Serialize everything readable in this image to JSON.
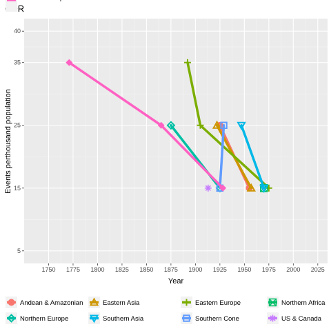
{
  "chart_data": {
    "type": "line",
    "title": "CDR",
    "xlabel": "Year",
    "ylabel": "Events perthousand population",
    "xlim": [
      1725,
      2035
    ],
    "ylim": [
      3,
      42
    ],
    "x_ticks": [
      1750,
      1775,
      1800,
      1825,
      1850,
      1875,
      1900,
      1925,
      1950,
      1975,
      2000,
      2025
    ],
    "y_ticks": [
      5,
      15,
      25,
      35,
      40
    ],
    "grid": true,
    "legend_position": "bottom",
    "series": [
      {
        "name": "Andean & Amazonian",
        "color": "#F8766D",
        "marker": "circle",
        "points": [
          {
            "x": 1925,
            "y": 25
          },
          {
            "x": 1955,
            "y": 15
          }
        ]
      },
      {
        "name": "Eastern Asia",
        "color": "#CD9600",
        "marker": "triangle-up",
        "points": [
          {
            "x": 1922,
            "y": 25
          },
          {
            "x": 1957,
            "y": 15
          }
        ]
      },
      {
        "name": "Eastern Europe",
        "color": "#7CAE00",
        "marker": "plus",
        "points": [
          {
            "x": 1892,
            "y": 35
          },
          {
            "x": 1905,
            "y": 25
          },
          {
            "x": 1975,
            "y": 15
          }
        ]
      },
      {
        "name": "Northern Africa",
        "color": "#00BE67",
        "marker": "x-box",
        "points": [
          {
            "x": 1970,
            "y": 15
          }
        ]
      },
      {
        "name": "Northern Europe",
        "color": "#00BFA4",
        "marker": "diamond",
        "points": [
          {
            "x": 1875,
            "y": 25
          },
          {
            "x": 1925,
            "y": 15
          }
        ]
      },
      {
        "name": "Southern Asia",
        "color": "#00B8E7",
        "marker": "triangle-down",
        "points": [
          {
            "x": 1947,
            "y": 25
          },
          {
            "x": 1970,
            "y": 15
          }
        ]
      },
      {
        "name": "Southern Cone",
        "color": "#619CFF",
        "marker": "square",
        "points": [
          {
            "x": 1929,
            "y": 25
          },
          {
            "x": 1925,
            "y": 15
          }
        ]
      },
      {
        "name": "US & Canada",
        "color": "#C77CFF",
        "marker": "asterisk",
        "points": [
          {
            "x": 1913,
            "y": 15
          }
        ]
      },
      {
        "name": "Western Europe",
        "color": "#FF61C3",
        "marker": "diamond-solid",
        "points": [
          {
            "x": 1771,
            "y": 35
          },
          {
            "x": 1865,
            "y": 25
          },
          {
            "x": 1928,
            "y": 15
          }
        ]
      }
    ]
  }
}
